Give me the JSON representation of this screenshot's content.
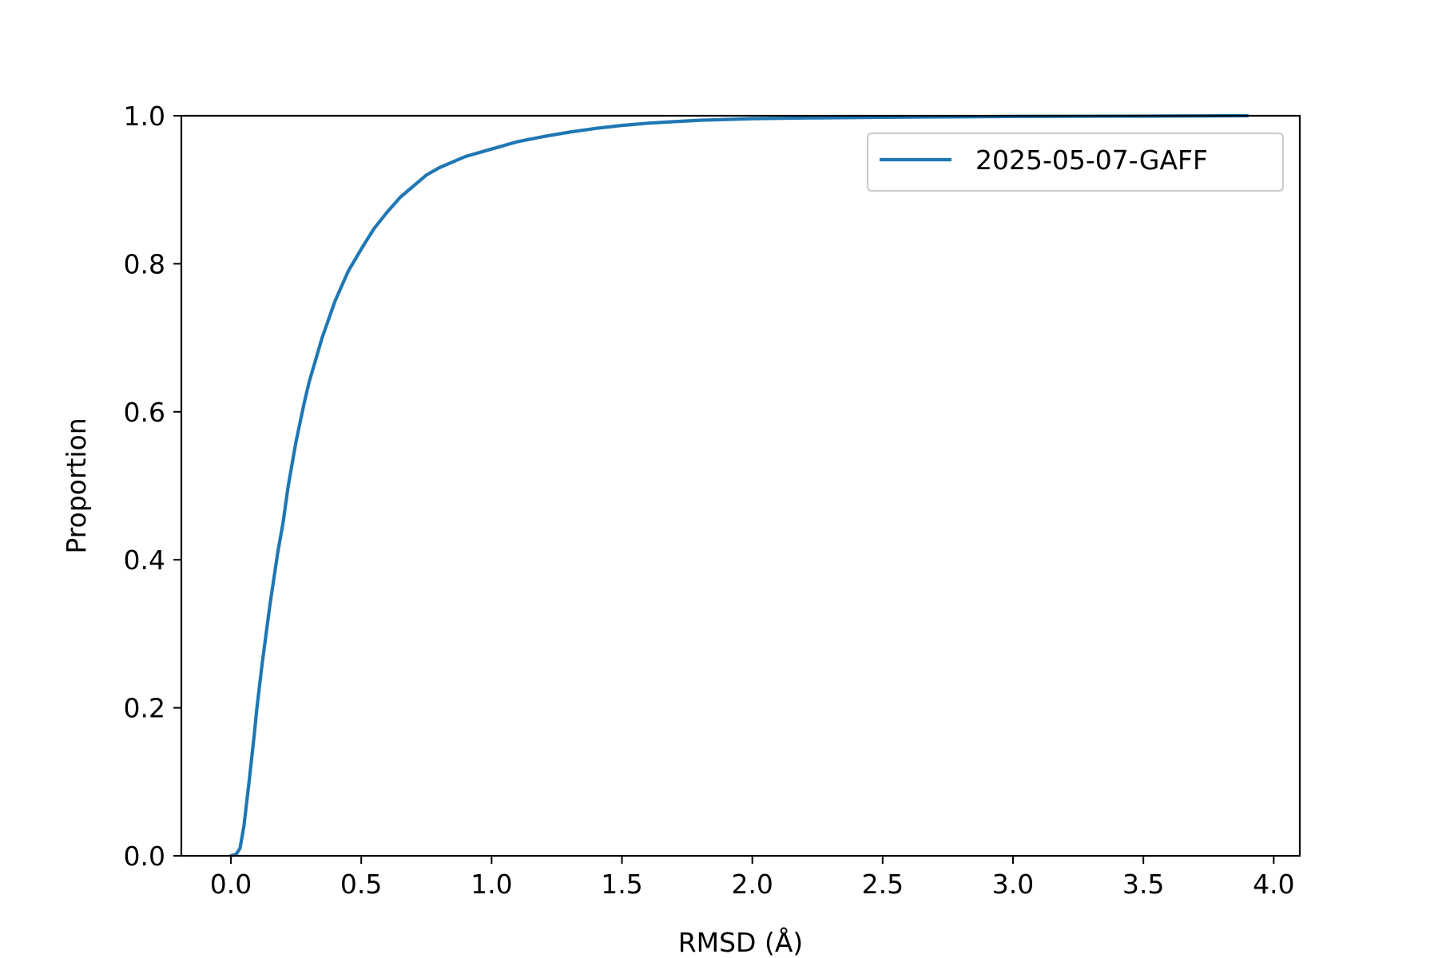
{
  "chart_data": {
    "type": "line",
    "xlabel": "RMSD (Å)",
    "ylabel": "Proportion",
    "xlim": [
      -0.19,
      4.1
    ],
    "ylim": [
      0.0,
      1.0
    ],
    "x_ticks": [
      0.0,
      0.5,
      1.0,
      1.5,
      2.0,
      2.5,
      3.0,
      3.5,
      4.0
    ],
    "x_tick_labels": [
      "0.0",
      "0.5",
      "1.0",
      "1.5",
      "2.0",
      "2.5",
      "3.0",
      "3.5",
      "4.0"
    ],
    "y_ticks": [
      0.0,
      0.2,
      0.4,
      0.6,
      0.8,
      1.0
    ],
    "y_tick_labels": [
      "0.0",
      "0.2",
      "0.4",
      "0.6",
      "0.8",
      "1.0"
    ],
    "grid": false,
    "legend_position": "top-right",
    "series": [
      {
        "name": "2025-05-07-GAFF",
        "color": "#1f77b4",
        "x": [
          0.0,
          0.02,
          0.035,
          0.05,
          0.07,
          0.09,
          0.1,
          0.12,
          0.15,
          0.18,
          0.2,
          0.22,
          0.25,
          0.28,
          0.3,
          0.35,
          0.4,
          0.45,
          0.5,
          0.55,
          0.6,
          0.65,
          0.7,
          0.75,
          0.8,
          0.9,
          1.0,
          1.1,
          1.2,
          1.3,
          1.4,
          1.5,
          1.6,
          1.7,
          1.8,
          2.0,
          2.2,
          2.5,
          3.0,
          3.5,
          3.9
        ],
        "y": [
          0.0,
          0.002,
          0.01,
          0.04,
          0.1,
          0.165,
          0.2,
          0.26,
          0.34,
          0.41,
          0.45,
          0.5,
          0.56,
          0.61,
          0.64,
          0.7,
          0.75,
          0.79,
          0.82,
          0.848,
          0.87,
          0.89,
          0.905,
          0.92,
          0.93,
          0.945,
          0.955,
          0.965,
          0.972,
          0.978,
          0.983,
          0.987,
          0.99,
          0.992,
          0.994,
          0.996,
          0.997,
          0.998,
          0.999,
          0.9995,
          1.0
        ]
      }
    ]
  }
}
